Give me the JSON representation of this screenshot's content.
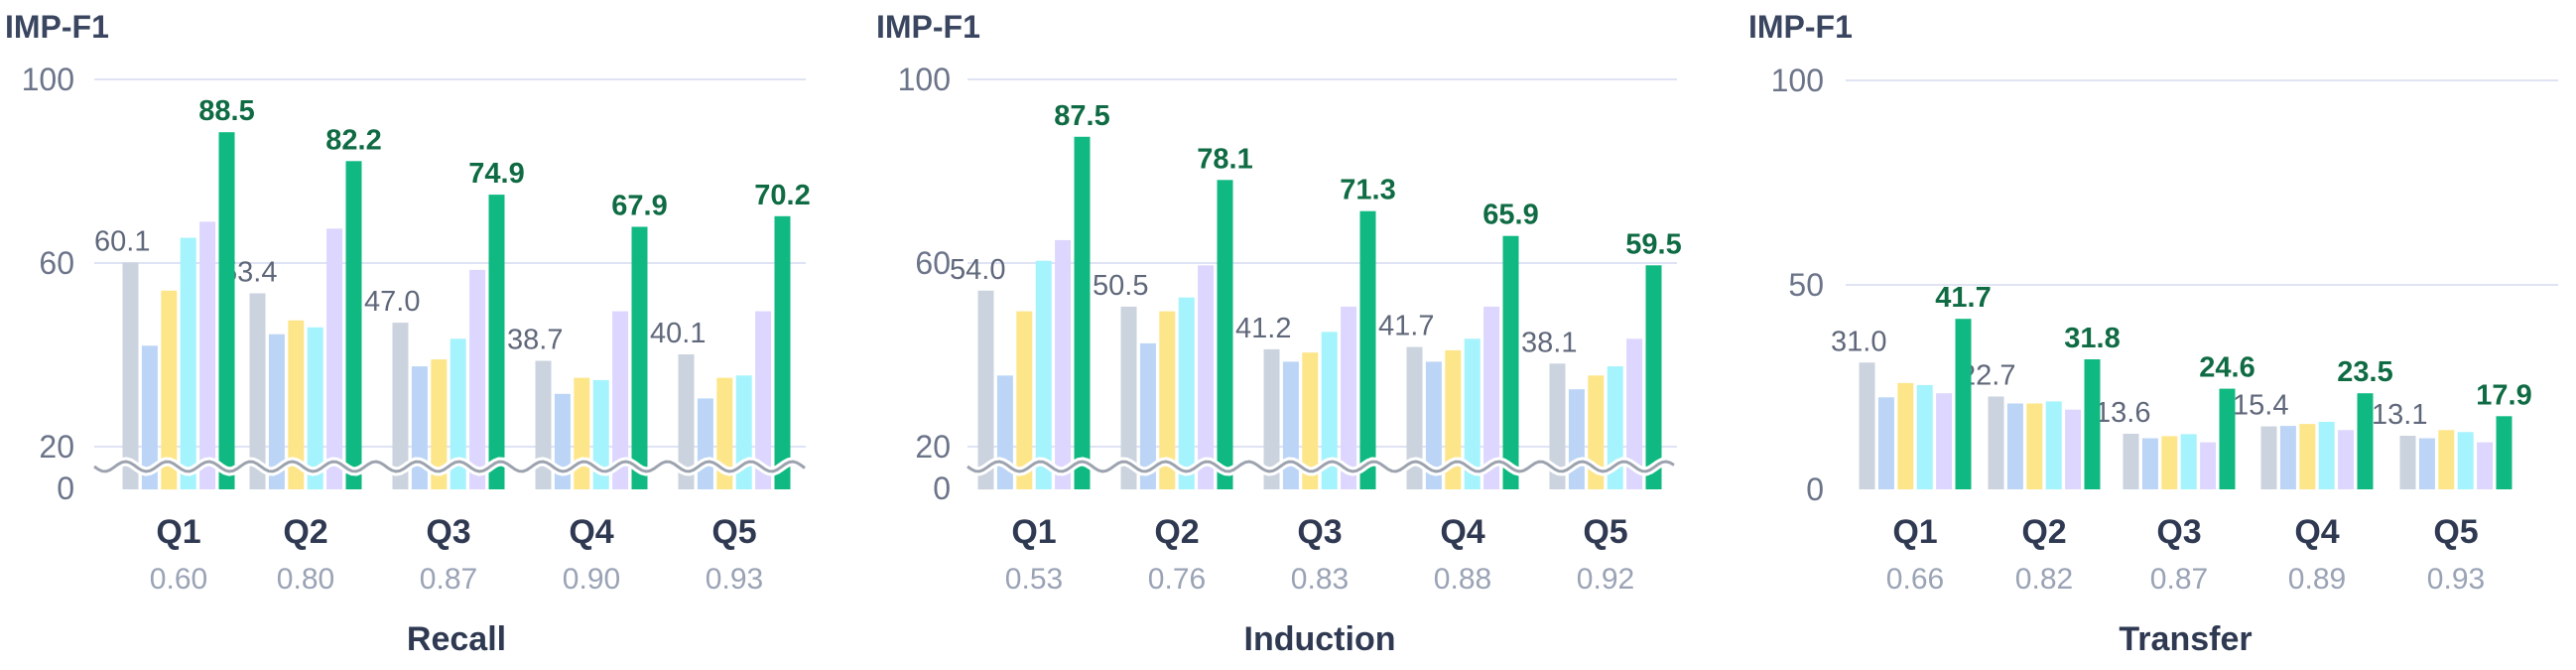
{
  "colors": {
    "s1": "#cbd3df",
    "s2": "#bcd5f6",
    "s3": "#fde68a",
    "s4": "#a5f3fc",
    "s5": "#ddd6fe",
    "best": "#10b981",
    "grid": "#dfe3f3",
    "axis_break": "#9ca3af"
  },
  "chart_data": [
    {
      "type": "bar",
      "ylabel": "IMP-F1",
      "xlabel": "Recall",
      "categories": [
        "Q1",
        "Q2",
        "Q3",
        "Q4",
        "Q5"
      ],
      "category_sublabels": [
        "0.60",
        "0.80",
        "0.87",
        "0.90",
        "0.93"
      ],
      "y_ticks": [
        0,
        20,
        60,
        100
      ],
      "y_axis_break": true,
      "series": [
        {
          "values": [
            60.1,
            53.4,
            47.0,
            38.7,
            40.1
          ],
          "labeled": true
        },
        {
          "values": [
            42.0,
            44.5,
            37.5,
            31.5,
            30.5
          ],
          "labeled": false
        },
        {
          "values": [
            54.0,
            47.5,
            39.0,
            35.0,
            35.0
          ],
          "labeled": false
        },
        {
          "values": [
            65.5,
            46.0,
            43.5,
            34.5,
            35.5
          ],
          "labeled": false
        },
        {
          "values": [
            69.0,
            67.5,
            58.5,
            49.5,
            49.5
          ],
          "labeled": false
        },
        {
          "values": [
            88.5,
            82.2,
            74.9,
            67.9,
            70.2
          ],
          "labeled": true,
          "highlight": true
        }
      ]
    },
    {
      "type": "bar",
      "ylabel": "IMP-F1",
      "xlabel": "Induction",
      "categories": [
        "Q1",
        "Q2",
        "Q3",
        "Q4",
        "Q5"
      ],
      "category_sublabels": [
        "0.53",
        "0.76",
        "0.83",
        "0.88",
        "0.92"
      ],
      "y_ticks": [
        0,
        20,
        60,
        100
      ],
      "y_axis_break": true,
      "series": [
        {
          "values": [
            54.0,
            50.5,
            41.2,
            41.7,
            38.1
          ],
          "labeled": true
        },
        {
          "values": [
            35.5,
            42.5,
            38.5,
            38.5,
            32.5
          ],
          "labeled": false
        },
        {
          "values": [
            49.5,
            49.5,
            40.5,
            41.0,
            35.5
          ],
          "labeled": false
        },
        {
          "values": [
            60.5,
            52.5,
            45.0,
            43.5,
            37.5
          ],
          "labeled": false
        },
        {
          "values": [
            65.0,
            59.5,
            50.5,
            50.5,
            43.5
          ],
          "labeled": false
        },
        {
          "values": [
            87.5,
            78.1,
            71.3,
            65.9,
            59.5
          ],
          "labeled": true,
          "highlight": true
        }
      ]
    },
    {
      "type": "bar",
      "ylabel": "IMP-F1",
      "xlabel": "Transfer",
      "categories": [
        "Q1",
        "Q2",
        "Q3",
        "Q4",
        "Q5"
      ],
      "category_sublabels": [
        "0.66",
        "0.82",
        "0.87",
        "0.89",
        "0.93"
      ],
      "y_ticks": [
        0,
        50,
        100
      ],
      "y_axis_break": false,
      "series": [
        {
          "values": [
            31.0,
            22.7,
            13.6,
            15.4,
            13.1
          ],
          "labeled": true
        },
        {
          "values": [
            22.5,
            21.0,
            12.5,
            15.5,
            12.5
          ],
          "labeled": false
        },
        {
          "values": [
            26.0,
            21.0,
            13.0,
            16.0,
            14.5
          ],
          "labeled": false
        },
        {
          "values": [
            25.5,
            21.5,
            13.5,
            16.5,
            14.0
          ],
          "labeled": false
        },
        {
          "values": [
            23.5,
            19.5,
            11.5,
            14.5,
            11.5
          ],
          "labeled": false
        },
        {
          "values": [
            41.7,
            31.8,
            24.6,
            23.5,
            17.9
          ],
          "labeled": true,
          "highlight": true
        }
      ]
    }
  ]
}
